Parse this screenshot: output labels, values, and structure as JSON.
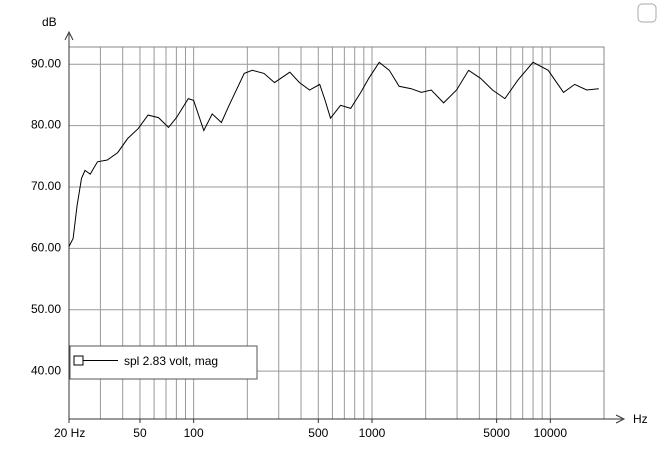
{
  "chart_data": {
    "type": "line",
    "ylabel": "dB",
    "xlabel": "Hz",
    "log_x": true,
    "grid": true,
    "legend": "bottom-left",
    "xlim": [
      20,
      20000
    ],
    "ylim": [
      32.2,
      92.8
    ],
    "xticks": [
      {
        "value": 20,
        "label": "20 Hz"
      },
      50,
      100,
      500,
      1000,
      5000,
      10000
    ],
    "xgrid": [
      20,
      30,
      40,
      50,
      60,
      70,
      80,
      90,
      100,
      200,
      300,
      400,
      500,
      600,
      700,
      800,
      900,
      1000,
      2000,
      3000,
      4000,
      5000,
      6000,
      7000,
      8000,
      9000,
      10000,
      20000
    ],
    "yticks": [
      {
        "value": 40,
        "label": "40.00"
      },
      {
        "value": 50,
        "label": "50.00"
      },
      {
        "value": 60,
        "label": "60.00"
      },
      {
        "value": 70,
        "label": "70.00"
      },
      {
        "value": 80,
        "label": "80.00"
      },
      {
        "value": 90,
        "label": "90.00"
      }
    ],
    "x": [
      20,
      21.1,
      22.2,
      23.5,
      24.6,
      26.3,
      28.9,
      32.8,
      37.5,
      42.7,
      48.9,
      55.5,
      63.5,
      72.3,
      80.1,
      93.3,
      100,
      114,
      127,
      143,
      158,
      175,
      192,
      213,
      248,
      284,
      346,
      392,
      447,
      509,
      546,
      585,
      667,
      760,
      866,
      960,
      1097,
      1250,
      1420,
      1660,
      1890,
      2150,
      2520,
      2980,
      3480,
      4060,
      4740,
      5560,
      6576,
      8000,
      9735,
      11850,
      13700,
      16000,
      18700
    ],
    "series": [
      {
        "name": "spl 2.83 volt, mag",
        "color": "#000000",
        "values": [
          60.3,
          61.6,
          67,
          71.4,
          72.7,
          72.1,
          74.1,
          74.4,
          75.6,
          77.9,
          79.5,
          81.7,
          81.3,
          79.7,
          81.3,
          84.4,
          84.1,
          79.2,
          81.9,
          80.5,
          83.3,
          86,
          88.5,
          89,
          88.5,
          87,
          88.7,
          87,
          85.8,
          86.7,
          84.1,
          81.2,
          83.3,
          82.8,
          85.4,
          87.7,
          90.3,
          89,
          86.4,
          86,
          85.4,
          85.8,
          83.7,
          85.8,
          89,
          87.7,
          85.8,
          84.4,
          87.4,
          90.3,
          89,
          85.4,
          86.7,
          85.8,
          86
        ]
      }
    ]
  }
}
